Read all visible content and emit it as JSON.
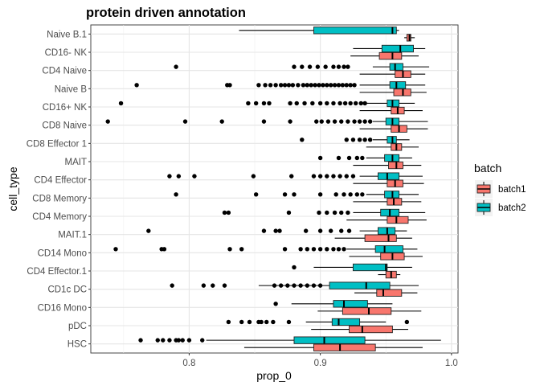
{
  "chart_data": {
    "type": "boxplot",
    "title": "protein driven annotation",
    "xlabel": "prop_0",
    "ylabel": "cell_type",
    "xlim": [
      0.725,
      1.005
    ],
    "x_ticks": [
      0.8,
      0.9,
      1.0
    ],
    "x_tick_labels": [
      "0.8",
      "0.9",
      "1.0"
    ],
    "grid": true,
    "legend": {
      "title": "batch",
      "position": "right",
      "entries": [
        {
          "name": "batch1",
          "color": "#F8766D"
        },
        {
          "name": "batch2",
          "color": "#00BFC4"
        }
      ]
    },
    "categories": [
      "Naive B.1",
      "CD16- NK",
      "CD4 Naive",
      "Naive B",
      "CD16+ NK",
      "CD8 Naive",
      "CD8 Effector 1",
      "MAIT",
      "CD4 Effector",
      "CD8 Memory",
      "CD4 Memory",
      "MAIT.1",
      "CD14 Mono",
      "CD4 Effector.1",
      "CD1c DC",
      "CD16 Mono",
      "pDC",
      "HSC"
    ],
    "series": [
      {
        "name": "batch1",
        "color": "#F8766D",
        "boxes": [
          {
            "whislo": 0.964,
            "q1": 0.966,
            "med": 0.968,
            "q3": 0.969,
            "whishi": 0.972,
            "fliers": []
          },
          {
            "whislo": 0.923,
            "q1": 0.945,
            "med": 0.955,
            "q3": 0.962,
            "whishi": 0.975,
            "fliers": []
          },
          {
            "whislo": 0.93,
            "q1": 0.957,
            "med": 0.963,
            "q3": 0.969,
            "whishi": 0.98,
            "fliers": []
          },
          {
            "whislo": 0.93,
            "q1": 0.956,
            "med": 0.963,
            "q3": 0.969,
            "whishi": 0.981,
            "fliers": []
          },
          {
            "whislo": 0.93,
            "q1": 0.954,
            "med": 0.959,
            "q3": 0.964,
            "whishi": 0.978,
            "fliers": []
          },
          {
            "whislo": 0.93,
            "q1": 0.954,
            "med": 0.96,
            "q3": 0.966,
            "whishi": 0.982,
            "fliers": []
          },
          {
            "whislo": 0.935,
            "q1": 0.954,
            "med": 0.958,
            "q3": 0.962,
            "whishi": 0.975,
            "fliers": []
          },
          {
            "whislo": 0.925,
            "q1": 0.952,
            "med": 0.958,
            "q3": 0.963,
            "whishi": 0.977,
            "fliers": []
          },
          {
            "whislo": 0.925,
            "q1": 0.951,
            "med": 0.957,
            "q3": 0.963,
            "whishi": 0.979,
            "fliers": []
          },
          {
            "whislo": 0.925,
            "q1": 0.951,
            "med": 0.956,
            "q3": 0.962,
            "whishi": 0.977,
            "fliers": []
          },
          {
            "whislo": 0.92,
            "q1": 0.951,
            "med": 0.958,
            "q3": 0.967,
            "whishi": 0.981,
            "fliers": []
          },
          {
            "whislo": 0.911,
            "q1": 0.934,
            "med": 0.952,
            "q3": 0.958,
            "whishi": 0.97,
            "fliers": []
          },
          {
            "whislo": 0.922,
            "q1": 0.946,
            "med": 0.955,
            "q3": 0.964,
            "whishi": 0.978,
            "fliers": []
          },
          {
            "whislo": 0.944,
            "q1": 0.95,
            "med": 0.954,
            "q3": 0.958,
            "whishi": 0.961,
            "fliers": []
          },
          {
            "whislo": 0.926,
            "q1": 0.943,
            "med": 0.948,
            "q3": 0.962,
            "whishi": 0.974,
            "fliers": []
          },
          {
            "whislo": 0.898,
            "q1": 0.917,
            "med": 0.937,
            "q3": 0.954,
            "whishi": 0.977,
            "fliers": []
          },
          {
            "whislo": 0.893,
            "q1": 0.922,
            "med": 0.932,
            "q3": 0.955,
            "whishi": 0.967,
            "fliers": []
          },
          {
            "whislo": 0.842,
            "q1": 0.895,
            "med": 0.915,
            "q3": 0.942,
            "whishi": 0.978,
            "fliers": []
          }
        ]
      },
      {
        "name": "batch2",
        "color": "#00BFC4",
        "boxes": [
          {
            "whislo": 0.838,
            "q1": 0.895,
            "med": 0.955,
            "q3": 0.958,
            "whishi": 0.96,
            "fliers": []
          },
          {
            "whislo": 0.925,
            "q1": 0.947,
            "med": 0.961,
            "q3": 0.971,
            "whishi": 0.98,
            "fliers": []
          },
          {
            "whislo": 0.94,
            "q1": 0.953,
            "med": 0.957,
            "q3": 0.963,
            "whishi": 0.983,
            "fliers": [
              0.79,
              0.88,
              0.886,
              0.892,
              0.898,
              0.904,
              0.91,
              0.914,
              0.918,
              0.921
            ]
          },
          {
            "whislo": 0.93,
            "q1": 0.953,
            "med": 0.958,
            "q3": 0.965,
            "whishi": 0.98,
            "fliers": [
              0.76,
              0.829,
              0.831,
              0.853,
              0.858,
              0.862,
              0.866,
              0.87,
              0.873,
              0.876,
              0.879,
              0.883,
              0.887,
              0.89,
              0.893,
              0.896,
              0.899,
              0.902,
              0.905,
              0.908,
              0.911,
              0.914,
              0.917,
              0.92,
              0.923,
              0.926
            ]
          },
          {
            "whislo": 0.935,
            "q1": 0.951,
            "med": 0.955,
            "q3": 0.96,
            "whishi": 0.972,
            "fliers": [
              0.748,
              0.845,
              0.851,
              0.857,
              0.861,
              0.877,
              0.882,
              0.888,
              0.894,
              0.9,
              0.905,
              0.91,
              0.915,
              0.919,
              0.923,
              0.927,
              0.931,
              0.934
            ]
          },
          {
            "whislo": 0.94,
            "q1": 0.95,
            "med": 0.955,
            "q3": 0.96,
            "whishi": 0.982,
            "fliers": [
              0.738,
              0.797,
              0.825,
              0.857,
              0.877,
              0.897,
              0.901,
              0.906,
              0.911,
              0.916,
              0.921,
              0.926,
              0.93,
              0.934,
              0.938
            ]
          },
          {
            "whislo": 0.94,
            "q1": 0.951,
            "med": 0.955,
            "q3": 0.958,
            "whishi": 0.968,
            "fliers": [
              0.886,
              0.92,
              0.925,
              0.93,
              0.934,
              0.938
            ]
          },
          {
            "whislo": 0.935,
            "q1": 0.949,
            "med": 0.955,
            "q3": 0.96,
            "whishi": 0.97,
            "fliers": [
              0.9,
              0.914,
              0.922,
              0.928,
              0.932
            ]
          },
          {
            "whislo": 0.93,
            "q1": 0.944,
            "med": 0.951,
            "q3": 0.96,
            "whishi": 0.978,
            "fliers": [
              0.785,
              0.792,
              0.804,
              0.849,
              0.878,
              0.895,
              0.9,
              0.905,
              0.91,
              0.915,
              0.92,
              0.925
            ]
          },
          {
            "whislo": 0.935,
            "q1": 0.949,
            "med": 0.955,
            "q3": 0.96,
            "whishi": 0.975,
            "fliers": [
              0.79,
              0.851,
              0.873,
              0.88,
              0.9,
              0.912,
              0.918,
              0.923,
              0.928,
              0.932
            ]
          },
          {
            "whislo": 0.925,
            "q1": 0.946,
            "med": 0.953,
            "q3": 0.96,
            "whishi": 0.98,
            "fliers": [
              0.827,
              0.83,
              0.876,
              0.899,
              0.905,
              0.911,
              0.916,
              0.921
            ]
          },
          {
            "whislo": 0.93,
            "q1": 0.944,
            "med": 0.951,
            "q3": 0.957,
            "whishi": 0.966,
            "fliers": [
              0.769,
              0.857,
              0.866,
              0.869,
              0.889,
              0.9,
              0.908,
              0.916,
              0.922
            ]
          },
          {
            "whislo": 0.92,
            "q1": 0.942,
            "med": 0.949,
            "q3": 0.963,
            "whishi": 0.974,
            "fliers": [
              0.744,
              0.779,
              0.781,
              0.831,
              0.84,
              0.873,
              0.885,
              0.89,
              0.895,
              0.9,
              0.905,
              0.91,
              0.914,
              0.918
            ]
          },
          {
            "whislo": 0.895,
            "q1": 0.925,
            "med": 0.95,
            "q3": 0.951,
            "whishi": 0.97,
            "fliers": [
              0.88
            ]
          },
          {
            "whislo": 0.853,
            "q1": 0.907,
            "med": 0.935,
            "q3": 0.953,
            "whishi": 0.975,
            "fliers": [
              0.787,
              0.811,
              0.818,
              0.827,
              0.865,
              0.87,
              0.875,
              0.88,
              0.885,
              0.89,
              0.895,
              0.9
            ]
          },
          {
            "whislo": 0.878,
            "q1": 0.91,
            "med": 0.918,
            "q3": 0.936,
            "whishi": 0.955,
            "fliers": [
              0.866
            ]
          },
          {
            "whislo": 0.889,
            "q1": 0.909,
            "med": 0.914,
            "q3": 0.93,
            "whishi": 0.95,
            "fliers": [
              0.83,
              0.84,
              0.846,
              0.853,
              0.855,
              0.859,
              0.864,
              0.876,
              0.966
            ]
          },
          {
            "whislo": 0.813,
            "q1": 0.88,
            "med": 0.903,
            "q3": 0.934,
            "whishi": 0.992,
            "fliers": [
              0.763,
              0.776,
              0.78,
              0.785,
              0.79,
              0.792,
              0.795,
              0.8,
              0.81
            ]
          }
        ]
      }
    ]
  }
}
